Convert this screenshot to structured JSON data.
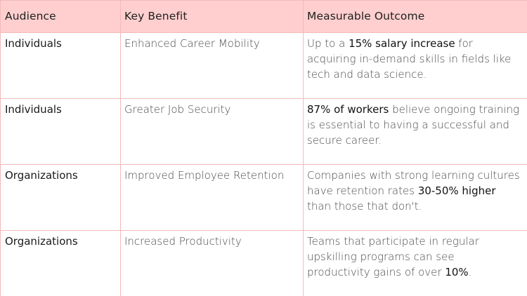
{
  "headers": {
    "audience": "Audience",
    "benefit": "Key Benefit",
    "outcome": "Measurable Outcome"
  },
  "rows": [
    {
      "audience": "Individuals",
      "benefit": "Enhanced Career Mobility",
      "outcome_pre": "Up to a ",
      "outcome_hl": "15% salary increase",
      "outcome_post": " for acquiring in-demand skills in fields like tech and data science."
    },
    {
      "audience": "Individuals",
      "benefit": "Greater Job Security",
      "outcome_pre": "",
      "outcome_hl": "87% of workers",
      "outcome_post": " believe ongoing training is essential to having a successful and secure career."
    },
    {
      "audience": "Organizations",
      "benefit": "Improved Employee Retention",
      "outcome_pre": "Companies with strong learning cultures have retention rates ",
      "outcome_hl": "30-50% higher",
      "outcome_post": " than those that don't."
    },
    {
      "audience": "Organizations",
      "benefit": "Increased Productivity",
      "outcome_pre": "Teams that participate in regular upskilling programs can see productivity gains of over ",
      "outcome_hl": "10%",
      "outcome_post": "."
    }
  ]
}
